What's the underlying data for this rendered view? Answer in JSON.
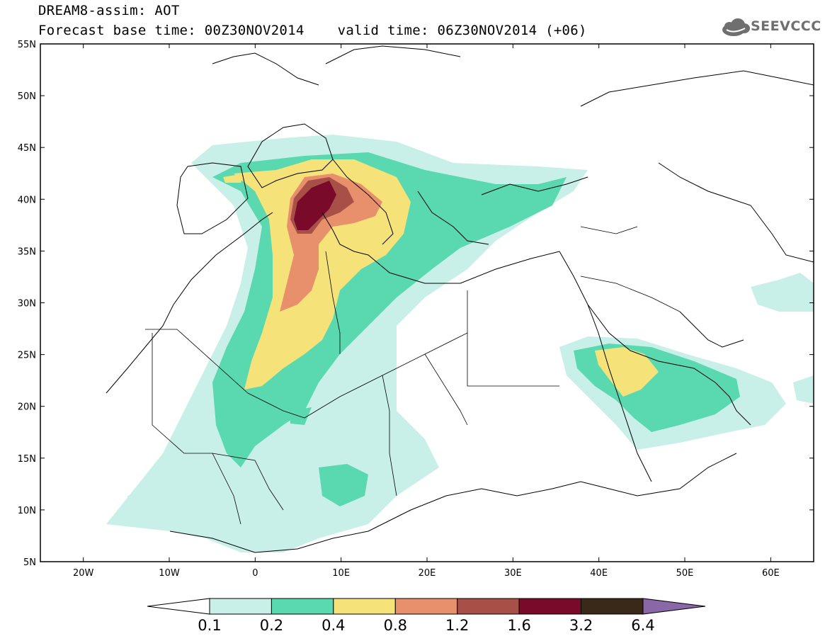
{
  "header": {
    "title_line1": "DREAM8-assim: AOT",
    "title_line2": "Forecast base time: 00Z30NOV2014    valid time: 06Z30NOV2014 (+06)",
    "logo_text": "SEEVCCC"
  },
  "map": {
    "lon_range": [
      -25,
      65
    ],
    "lat_range": [
      5,
      55
    ],
    "lat_ticks": [
      "55N",
      "50N",
      "45N",
      "40N",
      "35N",
      "30N",
      "25N",
      "20N",
      "15N",
      "10N",
      "5N"
    ],
    "lon_ticks": [
      "20W",
      "10W",
      "0",
      "10E",
      "20E",
      "30E",
      "40E",
      "50E",
      "60E"
    ],
    "variable": "AOT"
  },
  "colorbar": {
    "levels": [
      "0.1",
      "0.2",
      "0.4",
      "0.8",
      "1.2",
      "1.6",
      "3.2",
      "6.4"
    ],
    "colors": [
      "#ffffff",
      "#c8f0e8",
      "#5ad8b0",
      "#f5e37a",
      "#e8906c",
      "#a85048",
      "#7a0a2a",
      "#3a2818",
      "#8a68a8"
    ]
  },
  "colors": {
    "frame": "#000000",
    "coast": "#000000",
    "logo": "#6f6f6f"
  }
}
